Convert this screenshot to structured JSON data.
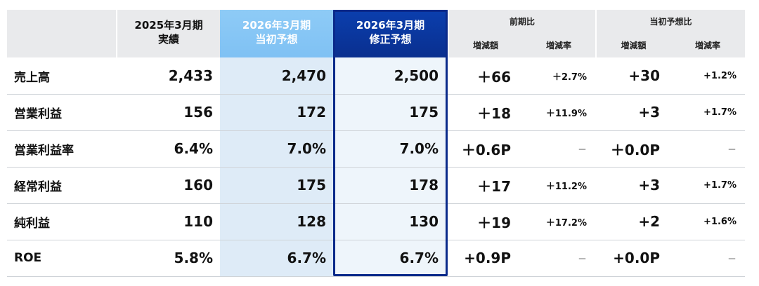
{
  "header": {
    "actual_fy2025": {
      "line1": "2025年3月期",
      "line2": "実績"
    },
    "initial_fy2026": {
      "line1": "2026年3月期",
      "line2": "当初予想"
    },
    "revised_fy2026": {
      "line1": "2026年3月期",
      "line2": "修正予想"
    },
    "yoy_group": "前期比",
    "vs_initial_group": "当初予想比",
    "change_amount": "増減額",
    "change_rate": "増減率"
  },
  "rows": [
    {
      "label": "売上高",
      "actual": "2,433",
      "initial": "2,470",
      "revised": "2,500",
      "yoy_amt": "＋66",
      "yoy_rate": "＋2.7%",
      "vs_amt": "+30",
      "vs_rate": "+1.2%"
    },
    {
      "label": "営業利益",
      "actual": "156",
      "initial": "172",
      "revised": "175",
      "yoy_amt": "＋18",
      "yoy_rate": "＋11.9%",
      "vs_amt": "+3",
      "vs_rate": "+1.7%"
    },
    {
      "label": "営業利益率",
      "actual": "6.4%",
      "initial": "7.0%",
      "revised": "7.0%",
      "yoy_amt": "＋0.6P",
      "yoy_rate": "－",
      "vs_amt": "＋0.0P",
      "vs_rate": "－"
    },
    {
      "label": "経常利益",
      "actual": "160",
      "initial": "175",
      "revised": "178",
      "yoy_amt": "＋17",
      "yoy_rate": "＋11.2%",
      "vs_amt": "+3",
      "vs_rate": "+1.7%"
    },
    {
      "label": "純利益",
      "actual": "110",
      "initial": "128",
      "revised": "130",
      "yoy_amt": "＋19",
      "yoy_rate": "＋17.2%",
      "vs_amt": "+2",
      "vs_rate": "+1.6%"
    },
    {
      "label": "ROE",
      "actual": "5.8%",
      "initial": "6.7%",
      "revised": "6.7%",
      "yoy_amt": "+0.9P",
      "yoy_rate": "－",
      "vs_amt": "+0.0P",
      "vs_rate": "－"
    }
  ],
  "colors": {
    "header_gray": "#e9eaec",
    "initial_header": "#8ecbf6",
    "revised_header": "#0b3fae",
    "initial_body": "#deebf7",
    "revised_body": "#eef5fb",
    "frame": "#0a2a8a"
  }
}
